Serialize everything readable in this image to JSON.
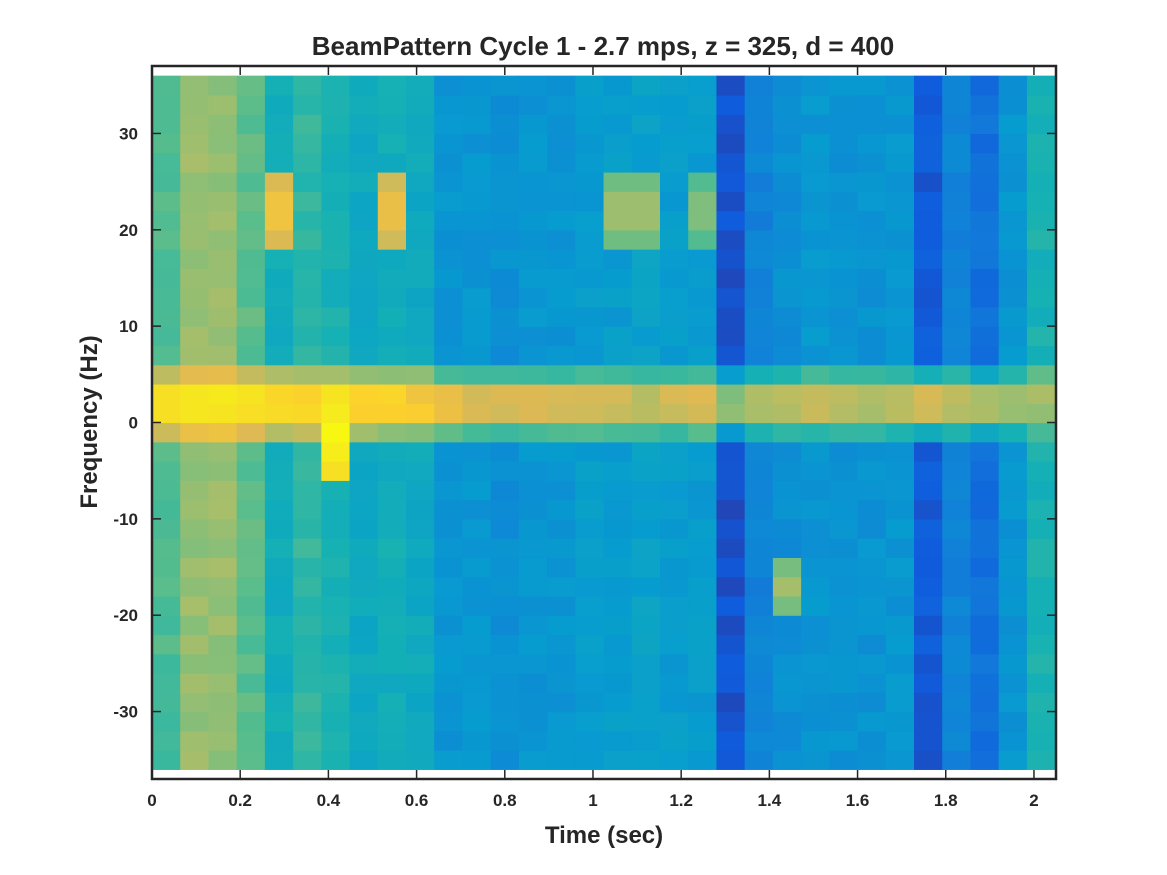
{
  "chart_data": {
    "type": "heatmap",
    "title": "BeamPattern Cycle 1 - 2.7 mps, z = 325, d = 400",
    "xlabel": "Time (sec)",
    "ylabel": "Frequency (Hz)",
    "xlim": [
      0,
      2.05
    ],
    "ylim": [
      -37,
      37
    ],
    "xticks": [
      0,
      0.2,
      0.4,
      0.6,
      0.8,
      1,
      1.2,
      1.4,
      1.6,
      1.8,
      2
    ],
    "xtick_labels": [
      "0",
      "0.2",
      "0.4",
      "0.6",
      "0.8",
      "1",
      "1.2",
      "1.4",
      "1.6",
      "1.8",
      "2"
    ],
    "yticks": [
      -30,
      -20,
      -10,
      0,
      10,
      20,
      30
    ],
    "ytick_labels": [
      "-30",
      "-20",
      "-10",
      "0",
      "10",
      "20",
      "30"
    ],
    "colormap": "parula",
    "grid": false,
    "legend": "none",
    "time_bins": [
      0.0,
      0.064,
      0.128,
      0.192,
      0.256,
      0.32,
      0.384,
      0.448,
      0.512,
      0.576,
      0.64,
      0.704,
      0.768,
      0.832,
      0.896,
      0.96,
      1.024,
      1.088,
      1.152,
      1.216,
      1.28,
      1.344,
      1.408,
      1.472,
      1.536,
      1.6,
      1.664,
      1.728,
      1.792,
      1.856,
      1.92,
      1.984
    ],
    "freq_bins": [
      -35,
      -33,
      -31,
      -29,
      -27,
      -25,
      -23,
      -21,
      -19,
      -17,
      -15,
      -13,
      -11,
      -9,
      -7,
      -5,
      -3,
      -1,
      1,
      3,
      5,
      7,
      9,
      11,
      13,
      15,
      17,
      19,
      21,
      23,
      25,
      27,
      29,
      31,
      33,
      35
    ],
    "column_base_levels": [
      0.48,
      0.58,
      0.58,
      0.5,
      0.38,
      0.44,
      0.4,
      0.36,
      0.38,
      0.36,
      0.28,
      0.28,
      0.26,
      0.28,
      0.28,
      0.3,
      0.3,
      0.32,
      0.3,
      0.3,
      0.08,
      0.22,
      0.26,
      0.28,
      0.27,
      0.27,
      0.28,
      0.1,
      0.22,
      0.16,
      0.28,
      0.4
    ],
    "band_peak_levels": [
      0.88,
      0.92,
      0.92,
      0.9,
      0.88,
      0.86,
      0.9,
      0.86,
      0.84,
      0.8,
      0.76,
      0.72,
      0.7,
      0.72,
      0.7,
      0.68,
      0.7,
      0.66,
      0.7,
      0.72,
      0.58,
      0.62,
      0.64,
      0.66,
      0.66,
      0.64,
      0.64,
      0.72,
      0.66,
      0.62,
      0.6,
      0.6
    ],
    "band_center_hz": 2,
    "band_halfwidth_hz": 4,
    "hotspots": [
      {
        "time": 0.41,
        "freq": -1,
        "level": 0.98
      },
      {
        "time": 0.41,
        "freq": -3,
        "level": 0.93
      },
      {
        "time": 0.29,
        "freq": 22,
        "level": 0.78
      },
      {
        "time": 0.53,
        "freq": 22,
        "level": 0.76
      },
      {
        "time": 1.1,
        "freq": 22,
        "level": 0.62
      },
      {
        "time": 1.24,
        "freq": 22,
        "level": 0.58
      },
      {
        "time": 1.44,
        "freq": -17,
        "level": 0.6
      }
    ]
  }
}
